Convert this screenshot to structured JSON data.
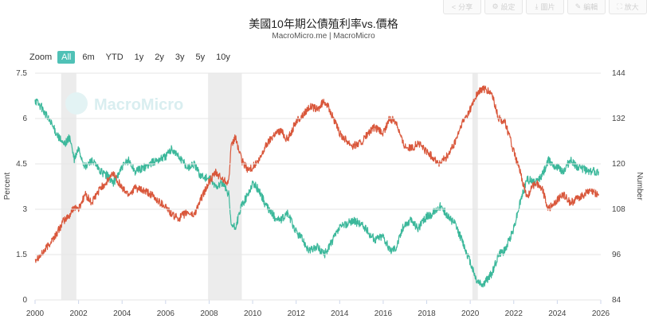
{
  "header": {
    "title": "美國10年期公債殖利率vs.價格",
    "subtitle": "MacroMicro.me | MacroMicro"
  },
  "toolbar": {
    "share_label": "分享",
    "settings_label": "設定",
    "download_label": "圖片",
    "edit_label": "編輯",
    "fullscreen_label": "放大"
  },
  "zoom": {
    "label": "Zoom",
    "buttons": [
      "All",
      "6m",
      "YTD",
      "1y",
      "2y",
      "3y",
      "5y",
      "10y"
    ],
    "active": "All"
  },
  "watermark": "MacroMicro",
  "colors": {
    "yield": "#d9573b",
    "price": "#3cb89b",
    "recession": "#ececec",
    "active_button": "#4fc1b6"
  },
  "chart_data": {
    "type": "line",
    "x_ticks": [
      "2000",
      "2002",
      "2004",
      "2006",
      "2008",
      "2010",
      "2012",
      "2014",
      "2016",
      "2018",
      "2020",
      "2022",
      "2024",
      "2026"
    ],
    "x_range": [
      2000,
      2026
    ],
    "y_left": {
      "label": "Percent",
      "range": [
        0,
        7.5
      ],
      "ticks": [
        "0",
        "1.5",
        "3",
        "4.5",
        "6",
        "7.5"
      ]
    },
    "y_right": {
      "label": "Number",
      "range": [
        84,
        144
      ],
      "ticks": [
        "84",
        "96",
        "108",
        "120",
        "132",
        "144"
      ]
    },
    "recession_bands": [
      [
        2001.2,
        2001.9
      ],
      [
        2007.95,
        2009.5
      ],
      [
        2020.1,
        2020.35
      ]
    ],
    "series": [
      {
        "axis": "left",
        "points": [
          [
            2000,
            1.35
          ],
          [
            2000.3,
            1.5
          ],
          [
            2000.6,
            1.8
          ],
          [
            2001,
            2.2
          ],
          [
            2001.3,
            2.6
          ],
          [
            2001.6,
            2.8
          ],
          [
            2001.8,
            3.1
          ],
          [
            2002,
            3.0
          ],
          [
            2002.3,
            3.5
          ],
          [
            2002.6,
            3.2
          ],
          [
            2003,
            3.7
          ],
          [
            2003.3,
            3.9
          ],
          [
            2003.6,
            4.2
          ],
          [
            2004,
            3.7
          ],
          [
            2004.3,
            3.5
          ],
          [
            2004.6,
            3.7
          ],
          [
            2005,
            3.6
          ],
          [
            2005.3,
            3.5
          ],
          [
            2005.6,
            3.3
          ],
          [
            2006,
            3.1
          ],
          [
            2006.3,
            2.8
          ],
          [
            2006.6,
            2.7
          ],
          [
            2007,
            2.9
          ],
          [
            2007.3,
            2.8
          ],
          [
            2007.6,
            3.3
          ],
          [
            2008,
            3.9
          ],
          [
            2008.3,
            4.2
          ],
          [
            2008.6,
            4.0
          ],
          [
            2008.9,
            3.9
          ],
          [
            2009,
            5.0
          ],
          [
            2009.2,
            5.4
          ],
          [
            2009.5,
            4.6
          ],
          [
            2009.8,
            4.3
          ],
          [
            2010,
            4.4
          ],
          [
            2010.3,
            4.6
          ],
          [
            2010.6,
            5.1
          ],
          [
            2011,
            5.5
          ],
          [
            2011.3,
            5.6
          ],
          [
            2011.6,
            5.3
          ],
          [
            2012,
            5.9
          ],
          [
            2012.3,
            6.1
          ],
          [
            2012.6,
            6.4
          ],
          [
            2013,
            6.3
          ],
          [
            2013.3,
            6.6
          ],
          [
            2013.6,
            6.2
          ],
          [
            2014,
            5.5
          ],
          [
            2014.3,
            5.3
          ],
          [
            2014.6,
            5.1
          ],
          [
            2015,
            5.2
          ],
          [
            2015.3,
            5.5
          ],
          [
            2015.6,
            5.7
          ],
          [
            2016,
            5.5
          ],
          [
            2016.3,
            6.0
          ],
          [
            2016.6,
            5.9
          ],
          [
            2016.9,
            5.2
          ],
          [
            2017,
            5.1
          ],
          [
            2017.3,
            5.0
          ],
          [
            2017.6,
            5.2
          ],
          [
            2018,
            4.9
          ],
          [
            2018.3,
            4.7
          ],
          [
            2018.6,
            4.5
          ],
          [
            2019,
            4.8
          ],
          [
            2019.3,
            5.2
          ],
          [
            2019.6,
            5.8
          ],
          [
            2020,
            6.3
          ],
          [
            2020.3,
            6.8
          ],
          [
            2020.6,
            7.0
          ],
          [
            2021,
            6.8
          ],
          [
            2021.3,
            6.0
          ],
          [
            2021.6,
            5.9
          ],
          [
            2022,
            4.9
          ],
          [
            2022.3,
            4.2
          ],
          [
            2022.6,
            3.4
          ],
          [
            2023,
            3.9
          ],
          [
            2023.3,
            3.7
          ],
          [
            2023.6,
            3.0
          ],
          [
            2024,
            3.3
          ],
          [
            2024.3,
            3.5
          ],
          [
            2024.6,
            3.2
          ],
          [
            2025,
            3.4
          ],
          [
            2025.5,
            3.6
          ],
          [
            2025.9,
            3.5
          ]
        ]
      },
      {
        "axis": "right",
        "points": [
          [
            2000,
            137
          ],
          [
            2000.3,
            135
          ],
          [
            2000.6,
            132
          ],
          [
            2001,
            128
          ],
          [
            2001.3,
            125
          ],
          [
            2001.6,
            127
          ],
          [
            2001.8,
            121
          ],
          [
            2002,
            124
          ],
          [
            2002.3,
            119
          ],
          [
            2002.6,
            121
          ],
          [
            2003,
            118
          ],
          [
            2003.3,
            117
          ],
          [
            2003.6,
            115
          ],
          [
            2004,
            119
          ],
          [
            2004.3,
            121
          ],
          [
            2004.6,
            118
          ],
          [
            2005,
            119
          ],
          [
            2005.3,
            120
          ],
          [
            2005.6,
            121
          ],
          [
            2006,
            122
          ],
          [
            2006.3,
            124
          ],
          [
            2006.6,
            122
          ],
          [
            2007,
            119
          ],
          [
            2007.3,
            120
          ],
          [
            2007.6,
            117
          ],
          [
            2008,
            116
          ],
          [
            2008.3,
            114
          ],
          [
            2008.6,
            115
          ],
          [
            2008.9,
            112
          ],
          [
            2009,
            104
          ],
          [
            2009.2,
            103
          ],
          [
            2009.5,
            109
          ],
          [
            2009.8,
            112
          ],
          [
            2010,
            115
          ],
          [
            2010.3,
            113
          ],
          [
            2010.6,
            109
          ],
          [
            2011,
            106
          ],
          [
            2011.3,
            105
          ],
          [
            2011.6,
            107
          ],
          [
            2012,
            102
          ],
          [
            2012.3,
            100
          ],
          [
            2012.6,
            97
          ],
          [
            2013,
            98
          ],
          [
            2013.3,
            96
          ],
          [
            2013.6,
            99
          ],
          [
            2014,
            103
          ],
          [
            2014.3,
            104
          ],
          [
            2014.6,
            105
          ],
          [
            2015,
            104
          ],
          [
            2015.3,
            102
          ],
          [
            2015.6,
            100
          ],
          [
            2016,
            101
          ],
          [
            2016.3,
            97
          ],
          [
            2016.6,
            98
          ],
          [
            2016.9,
            103
          ],
          [
            2017,
            104
          ],
          [
            2017.3,
            105
          ],
          [
            2017.6,
            103
          ],
          [
            2018,
            106
          ],
          [
            2018.3,
            107
          ],
          [
            2018.6,
            109
          ],
          [
            2019,
            106
          ],
          [
            2019.3,
            104
          ],
          [
            2019.6,
            100
          ],
          [
            2020,
            94
          ],
          [
            2020.3,
            89
          ],
          [
            2020.6,
            88
          ],
          [
            2021,
            91
          ],
          [
            2021.3,
            96
          ],
          [
            2021.6,
            97
          ],
          [
            2022,
            103
          ],
          [
            2022.3,
            110
          ],
          [
            2022.6,
            116
          ],
          [
            2023,
            115
          ],
          [
            2023.3,
            117
          ],
          [
            2023.6,
            121
          ],
          [
            2024,
            119
          ],
          [
            2024.3,
            118
          ],
          [
            2024.6,
            121
          ],
          [
            2025,
            119
          ],
          [
            2025.5,
            118
          ],
          [
            2025.9,
            118
          ]
        ]
      }
    ]
  }
}
